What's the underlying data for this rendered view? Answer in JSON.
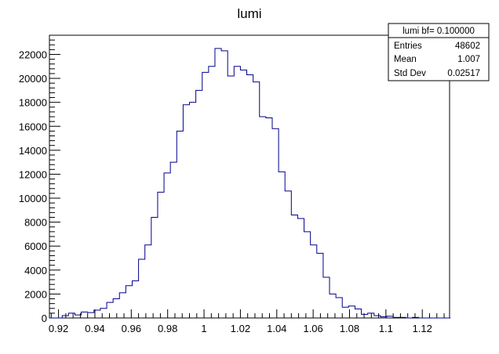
{
  "chart_data": {
    "type": "histogram",
    "title": "lumi",
    "xlabel": "",
    "ylabel": "",
    "xlim": [
      0.915,
      1.135
    ],
    "ylim": [
      0,
      23600
    ],
    "x_tick_labels": [
      "0.92",
      "0.94",
      "0.96",
      "0.98",
      "1",
      "1.02",
      "1.04",
      "1.06",
      "1.08",
      "1.1",
      "1.12"
    ],
    "x_tick_values": [
      0.92,
      0.94,
      0.96,
      0.98,
      1.0,
      1.02,
      1.04,
      1.06,
      1.08,
      1.1,
      1.12
    ],
    "y_tick_labels": [
      "0",
      "2000",
      "4000",
      "6000",
      "8000",
      "10000",
      "12000",
      "14000",
      "16000",
      "18000",
      "20000",
      "22000"
    ],
    "y_tick_values": [
      0,
      2000,
      4000,
      6000,
      8000,
      10000,
      12000,
      14000,
      16000,
      18000,
      20000,
      22000
    ],
    "bins": {
      "start": 0.915,
      "width": 0.0035,
      "counts": [
        0,
        0,
        200,
        400,
        250,
        500,
        450,
        650,
        800,
        1300,
        1600,
        2100,
        2700,
        3100,
        4900,
        6100,
        8400,
        10500,
        12100,
        13000,
        15600,
        17800,
        18000,
        19000,
        20500,
        21000,
        22500,
        22300,
        20200,
        21000,
        20700,
        20300,
        19700,
        16800,
        16700,
        15800,
        12200,
        10600,
        8600,
        8300,
        7200,
        6100,
        5400,
        3400,
        2000,
        1700,
        900,
        1000,
        750,
        300,
        400,
        200,
        100,
        150,
        50,
        50,
        0,
        50,
        0,
        0,
        0,
        0,
        0
      ]
    },
    "series": [
      {
        "color": "#00008b"
      }
    ],
    "grid": false,
    "stats_box": {
      "header": "lumi bf= 0.100000",
      "rows": [
        {
          "label": "Entries",
          "value": "48602"
        },
        {
          "label": "Mean",
          "value": "1.007"
        },
        {
          "label": "Std Dev",
          "value": "0.02517"
        }
      ]
    }
  }
}
